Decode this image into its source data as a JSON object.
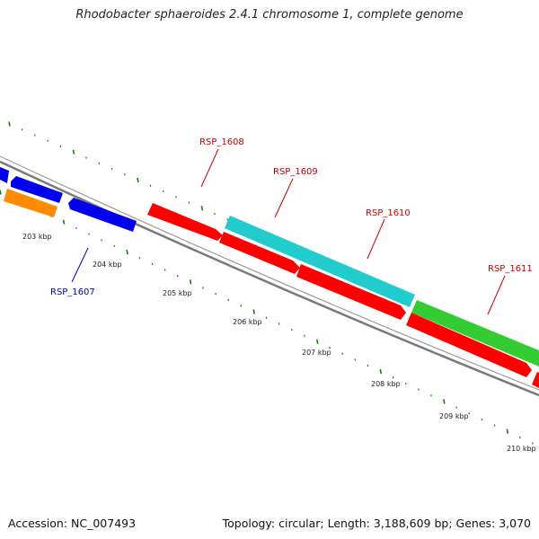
{
  "title": "Rhodobacter sphaeroides 2.4.1 chromosome 1, complete genome",
  "footer": {
    "accession": "Accession: NC_007493",
    "summary": "Topology: circular; Length: 3,188,609 bp; Genes: 3,070"
  },
  "colors": {
    "backbone": "#7a7a7a",
    "tick": "#1a7a1a",
    "label_red": "#cc0000",
    "label_blue": "#0000cc",
    "gene_red": "#ff0000",
    "gene_blue": "#0000ee",
    "gene_orange": "#ff8c00",
    "gene_cyan": "#22cccc",
    "gene_green": "#33cc33"
  },
  "scale_labels": [
    "203 kbp",
    "204 kbp",
    "205 kbp",
    "206 kbp",
    "207 kbp",
    "208 kbp",
    "209 kbp",
    "210 kbp"
  ],
  "gene_labels": {
    "rsp1607": "RSP_1607",
    "rsp1608": "RSP_1608",
    "rsp1609": "RSP_1609",
    "rsp1610": "RSP_1610",
    "rsp1611": "RSP_1611"
  },
  "genes": [
    {
      "name": "gene-blue-1",
      "color": "gene_blue"
    },
    {
      "name": "gene-blue-2",
      "color": "gene_blue"
    },
    {
      "name": "gene-orange-1",
      "color": "gene_orange"
    },
    {
      "name": "gene-blue-rsp1607",
      "color": "gene_blue"
    },
    {
      "name": "gene-red-rsp1608",
      "color": "gene_red"
    },
    {
      "name": "gene-cyan-rsp1609",
      "color": "gene_cyan"
    },
    {
      "name": "gene-red-2",
      "color": "gene_red"
    },
    {
      "name": "gene-red-3",
      "color": "gene_red"
    },
    {
      "name": "gene-green-rsp1611",
      "color": "gene_green"
    },
    {
      "name": "gene-red-4",
      "color": "gene_red"
    },
    {
      "name": "gene-red-5",
      "color": "gene_red"
    }
  ]
}
